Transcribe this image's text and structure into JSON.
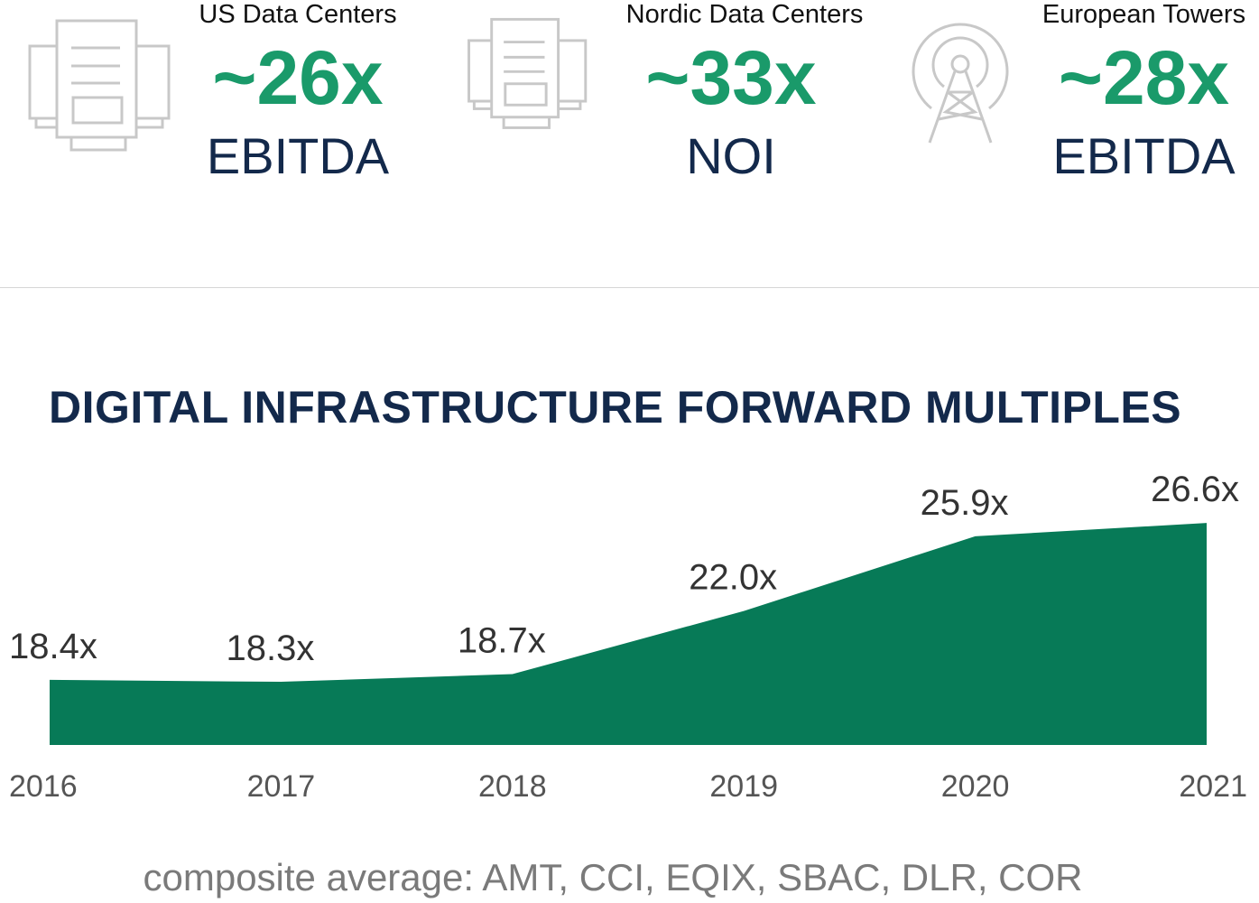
{
  "stats": [
    {
      "label": "US Data Centers",
      "value": "~26x",
      "unit": "EBITDA",
      "icon": "data-center-icon"
    },
    {
      "label": "Nordic Data Centers",
      "value": "~33x",
      "unit": "NOI",
      "icon": "data-center-icon"
    },
    {
      "label": "European Towers",
      "value": "~28x",
      "unit": "EBITDA",
      "icon": "cell-tower-icon"
    }
  ],
  "colors": {
    "accent": "#1a9a6a",
    "area": "#077a57",
    "navy": "#13294b",
    "icon": "#c8c8c8"
  },
  "chart_data": {
    "type": "area",
    "title": "DIGITAL INFRASTRUCTURE FORWARD MULTIPLES",
    "categories": [
      "2016",
      "2017",
      "2018",
      "2019",
      "2020",
      "2021"
    ],
    "values": [
      18.4,
      18.3,
      18.7,
      22.0,
      25.9,
      26.6
    ],
    "data_labels": [
      "18.4x",
      "18.3x",
      "18.7x",
      "22.0x",
      "25.9x",
      "26.6x"
    ],
    "ylim": [
      15,
      27
    ],
    "grid": false,
    "legend": "none"
  },
  "footer": "composite average: AMT, CCI, EQIX, SBAC, DLR, COR"
}
